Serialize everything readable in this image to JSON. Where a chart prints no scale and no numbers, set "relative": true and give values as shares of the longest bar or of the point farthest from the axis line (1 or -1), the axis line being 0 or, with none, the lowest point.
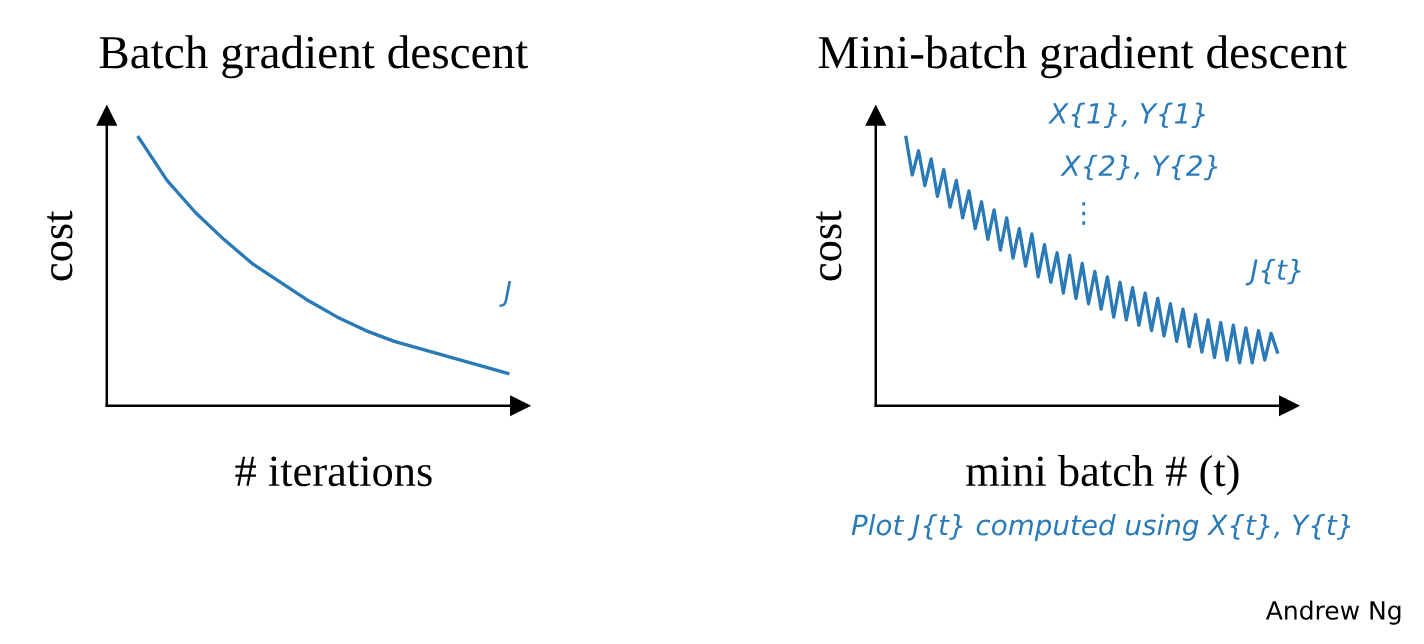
{
  "chart_data": [
    {
      "type": "line",
      "title": "Batch gradient descent",
      "xlabel": "# iterations",
      "ylabel": "cost",
      "relative": true,
      "categories": [
        null,
        null,
        null,
        null,
        null,
        null,
        null,
        null,
        null,
        null,
        null,
        null,
        null,
        null
      ],
      "series": [
        {
          "name": "J",
          "color": "#2a7ab8",
          "values": [
            1.0,
            0.84,
            0.72,
            0.62,
            0.53,
            0.46,
            0.39,
            0.33,
            0.28,
            0.24,
            0.21,
            0.18,
            0.15,
            0.12
          ]
        }
      ]
    },
    {
      "type": "line",
      "title": "Mini-batch gradient descent",
      "xlabel": "mini batch # (t)",
      "ylabel": "cost",
      "relative": true,
      "categories": [
        null,
        null,
        null,
        null,
        null,
        null,
        null,
        null,
        null,
        null,
        null,
        null,
        null,
        null,
        null,
        null,
        null,
        null,
        null,
        null,
        null,
        null,
        null,
        null,
        null,
        null,
        null,
        null,
        null,
        null,
        null,
        null,
        null,
        null,
        null,
        null,
        null,
        null,
        null,
        null,
        null,
        null,
        null,
        null,
        null,
        null,
        null,
        null,
        null,
        null,
        null,
        null,
        null,
        null,
        null,
        null,
        null,
        null,
        null,
        null
      ],
      "series": [
        {
          "name": "J{t}",
          "color": "#2a7ab8",
          "values": [
            1.0,
            0.86,
            0.95,
            0.82,
            0.92,
            0.78,
            0.88,
            0.74,
            0.84,
            0.7,
            0.8,
            0.66,
            0.76,
            0.62,
            0.73,
            0.58,
            0.7,
            0.55,
            0.66,
            0.52,
            0.64,
            0.48,
            0.6,
            0.46,
            0.57,
            0.42,
            0.56,
            0.4,
            0.53,
            0.38,
            0.5,
            0.36,
            0.48,
            0.33,
            0.46,
            0.32,
            0.44,
            0.3,
            0.42,
            0.28,
            0.4,
            0.26,
            0.38,
            0.24,
            0.36,
            0.22,
            0.34,
            0.2,
            0.32,
            0.18,
            0.31,
            0.17,
            0.3,
            0.16,
            0.29,
            0.16,
            0.28,
            0.17,
            0.27,
            0.2
          ]
        }
      ],
      "annotations": [
        "X{1}, Y{1}",
        "X{2}, Y{2}",
        "⋮",
        "Plot J{t} computed using X{t}, Y{t}",
        "Andrew Ng"
      ]
    }
  ]
}
